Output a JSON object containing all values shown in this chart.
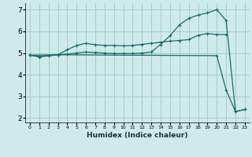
{
  "xlabel": "Humidex (Indice chaleur)",
  "bg_color": "#ceeaea",
  "grid_color": "#a8cccc",
  "line_color": "#1a6b6b",
  "xlim": [
    -0.5,
    23.5
  ],
  "ylim": [
    1.8,
    7.3
  ],
  "xticks": [
    0,
    1,
    2,
    3,
    4,
    5,
    6,
    7,
    8,
    9,
    10,
    11,
    12,
    13,
    14,
    15,
    16,
    17,
    18,
    19,
    20,
    21,
    22,
    23
  ],
  "yticks": [
    2,
    3,
    4,
    5,
    6,
    7
  ],
  "line1_x": [
    0,
    1,
    2,
    3,
    4,
    5,
    6,
    7,
    8,
    9,
    10,
    11,
    12,
    13,
    14,
    15,
    16,
    17,
    18,
    19,
    20,
    21
  ],
  "line1_y": [
    4.9,
    4.85,
    4.88,
    4.92,
    5.15,
    5.35,
    5.45,
    5.38,
    5.35,
    5.35,
    5.33,
    5.35,
    5.4,
    5.45,
    5.5,
    5.55,
    5.58,
    5.62,
    5.82,
    5.9,
    5.85,
    5.85
  ],
  "line2_x": [
    0,
    1,
    2,
    3,
    4,
    5,
    6,
    7,
    8,
    9,
    10,
    11,
    12,
    13,
    14,
    15,
    16,
    17,
    18,
    19,
    20,
    21,
    22,
    23
  ],
  "line2_y": [
    4.9,
    4.82,
    4.87,
    4.92,
    4.95,
    5.0,
    5.05,
    5.02,
    5.0,
    4.98,
    4.98,
    4.98,
    5.0,
    5.05,
    5.4,
    5.8,
    6.3,
    6.6,
    6.75,
    6.85,
    7.0,
    6.5,
    2.3,
    2.4
  ],
  "line3_x": [
    0,
    3,
    20,
    21,
    22,
    23
  ],
  "line3_y": [
    4.9,
    4.92,
    4.88,
    3.3,
    2.3,
    2.4
  ]
}
